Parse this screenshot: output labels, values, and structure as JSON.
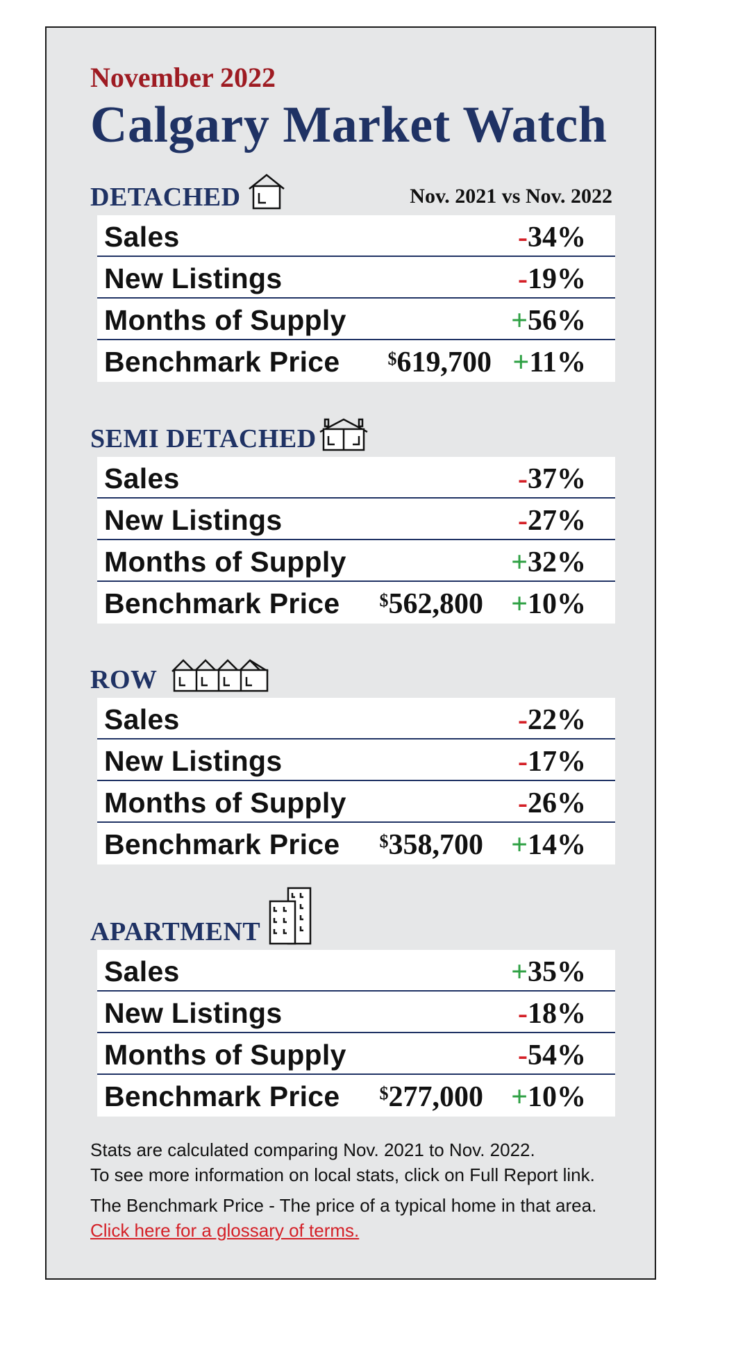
{
  "header": {
    "subtitle": "November 2022",
    "title": "Calgary Market Watch",
    "comparison": "Nov. 2021 vs Nov. 2022"
  },
  "sections": [
    {
      "label": "DETACHED",
      "icon": "house-icon",
      "rows": [
        {
          "label": "Sales",
          "sign": "-",
          "value": "34%"
        },
        {
          "label": "New Listings",
          "sign": "-",
          "value": "19%"
        },
        {
          "label": "Months of Supply",
          "sign": "+",
          "value": "56%"
        },
        {
          "label": "Benchmark Price",
          "price_symbol": "$",
          "price": "619,700",
          "sign": "+",
          "value": "11%"
        }
      ]
    },
    {
      "label": "SEMI DETACHED",
      "icon": "semi-detached-house-icon",
      "rows": [
        {
          "label": "Sales",
          "sign": "-",
          "value": "37%"
        },
        {
          "label": "New Listings",
          "sign": "-",
          "value": "27%"
        },
        {
          "label": "Months of Supply",
          "sign": "+",
          "value": "32%"
        },
        {
          "label": "Benchmark Price",
          "price_symbol": "$",
          "price": "562,800",
          "sign": "+",
          "value": "10%"
        }
      ]
    },
    {
      "label": "ROW",
      "icon": "row-houses-icon",
      "rows": [
        {
          "label": "Sales",
          "sign": "-",
          "value": "22%"
        },
        {
          "label": "New Listings",
          "sign": "-",
          "value": "17%"
        },
        {
          "label": "Months of Supply",
          "sign": "-",
          "value": "26%"
        },
        {
          "label": "Benchmark Price",
          "price_symbol": "$",
          "price": "358,700",
          "sign": "+",
          "value": "14%"
        }
      ]
    },
    {
      "label": "APARTMENT",
      "icon": "apartment-building-icon",
      "rows": [
        {
          "label": "Sales",
          "sign": "+",
          "value": "35%"
        },
        {
          "label": "New Listings",
          "sign": "-",
          "value": "18%"
        },
        {
          "label": "Months of Supply",
          "sign": "-",
          "value": "54%"
        },
        {
          "label": "Benchmark Price",
          "price_symbol": "$",
          "price": "277,000",
          "sign": "+",
          "value": "10%"
        }
      ]
    }
  ],
  "notes": {
    "line1": "Stats are calculated comparing Nov. 2021 to Nov. 2022.",
    "line2": "To see more information on local stats, click on Full Report link.",
    "line3": "The Benchmark Price - The price of a typical home in that area.",
    "link": "Click here for a glossary of terms."
  },
  "colors": {
    "navy": "#1f3264",
    "red_heading": "#9e1b22",
    "negative": "#d42027",
    "positive": "#2ea043",
    "card_bg": "#e6e7e8"
  }
}
